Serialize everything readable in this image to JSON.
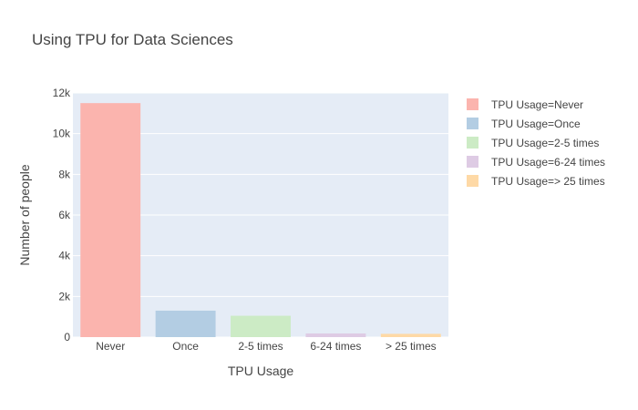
{
  "chart_data": {
    "type": "bar",
    "title": "Using TPU for Data Sciences",
    "xlabel": "TPU Usage",
    "ylabel": "Number of people",
    "categories": [
      "Never",
      "Once",
      "2-5 times",
      "6-24 times",
      "> 25 times"
    ],
    "values": [
      11500,
      1300,
      1050,
      180,
      160
    ],
    "colors": [
      "#fbb4ae",
      "#b3cde3",
      "#ccebc5",
      "#decbe4",
      "#fed9a6"
    ],
    "ylim": [
      0,
      12000
    ],
    "yticks": [
      0,
      2000,
      4000,
      6000,
      8000,
      10000,
      12000
    ],
    "ytick_labels": [
      "0",
      "2k",
      "4k",
      "6k",
      "8k",
      "10k",
      "12k"
    ],
    "grid": true,
    "legend": {
      "position": "right",
      "entries": [
        "TPU Usage=Never",
        "TPU Usage=Once",
        "TPU Usage=2-5 times",
        "TPU Usage=6-24 times",
        "TPU Usage=> 25 times"
      ]
    },
    "plot_background": "#e5ecf6"
  }
}
